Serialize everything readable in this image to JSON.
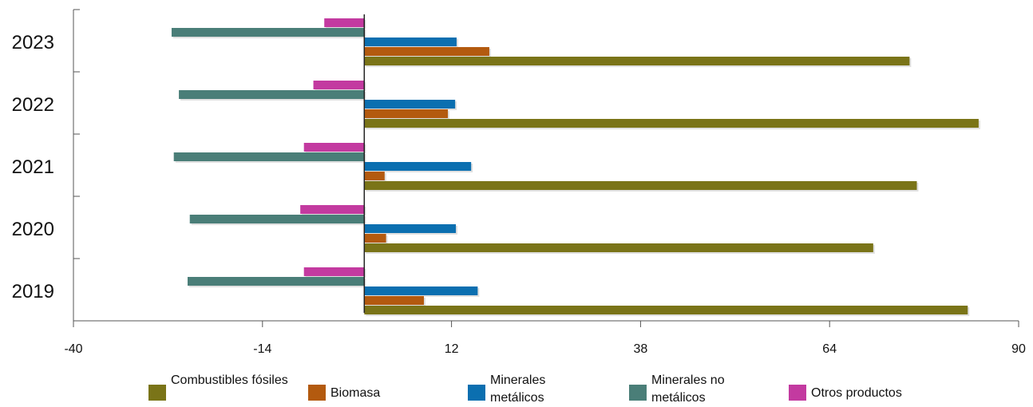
{
  "chart_data": {
    "type": "bar",
    "orientation": "horizontal",
    "categories": [
      "2023",
      "2022",
      "2021",
      "2020",
      "2019"
    ],
    "series": [
      {
        "name": "Combustibles fósiles",
        "color": "#7a7418",
        "values": [
          75.0,
          84.5,
          76.0,
          70.0,
          83.0
        ]
      },
      {
        "name": "Biomasa",
        "color": "#b35a0f",
        "values": [
          17.2,
          11.5,
          2.8,
          3.0,
          8.2
        ]
      },
      {
        "name": "Minerales metálicos",
        "color": "#0b6fb0",
        "values": [
          12.7,
          12.5,
          14.7,
          12.6,
          15.6
        ]
      },
      {
        "name": "Minerales no metálicos",
        "color": "#4a7e78",
        "values": [
          -26.5,
          -25.5,
          -26.2,
          -24.0,
          -24.3
        ]
      },
      {
        "name": "Otros productos",
        "color": "#c33aa0",
        "values": [
          -5.5,
          -7.0,
          -8.3,
          -8.8,
          -8.3
        ]
      }
    ],
    "xticks": [
      "-40",
      "-14",
      "12",
      "38",
      "64",
      "90"
    ],
    "xlim": [
      -40,
      90
    ],
    "grid": false,
    "legend_position": "bottom"
  }
}
